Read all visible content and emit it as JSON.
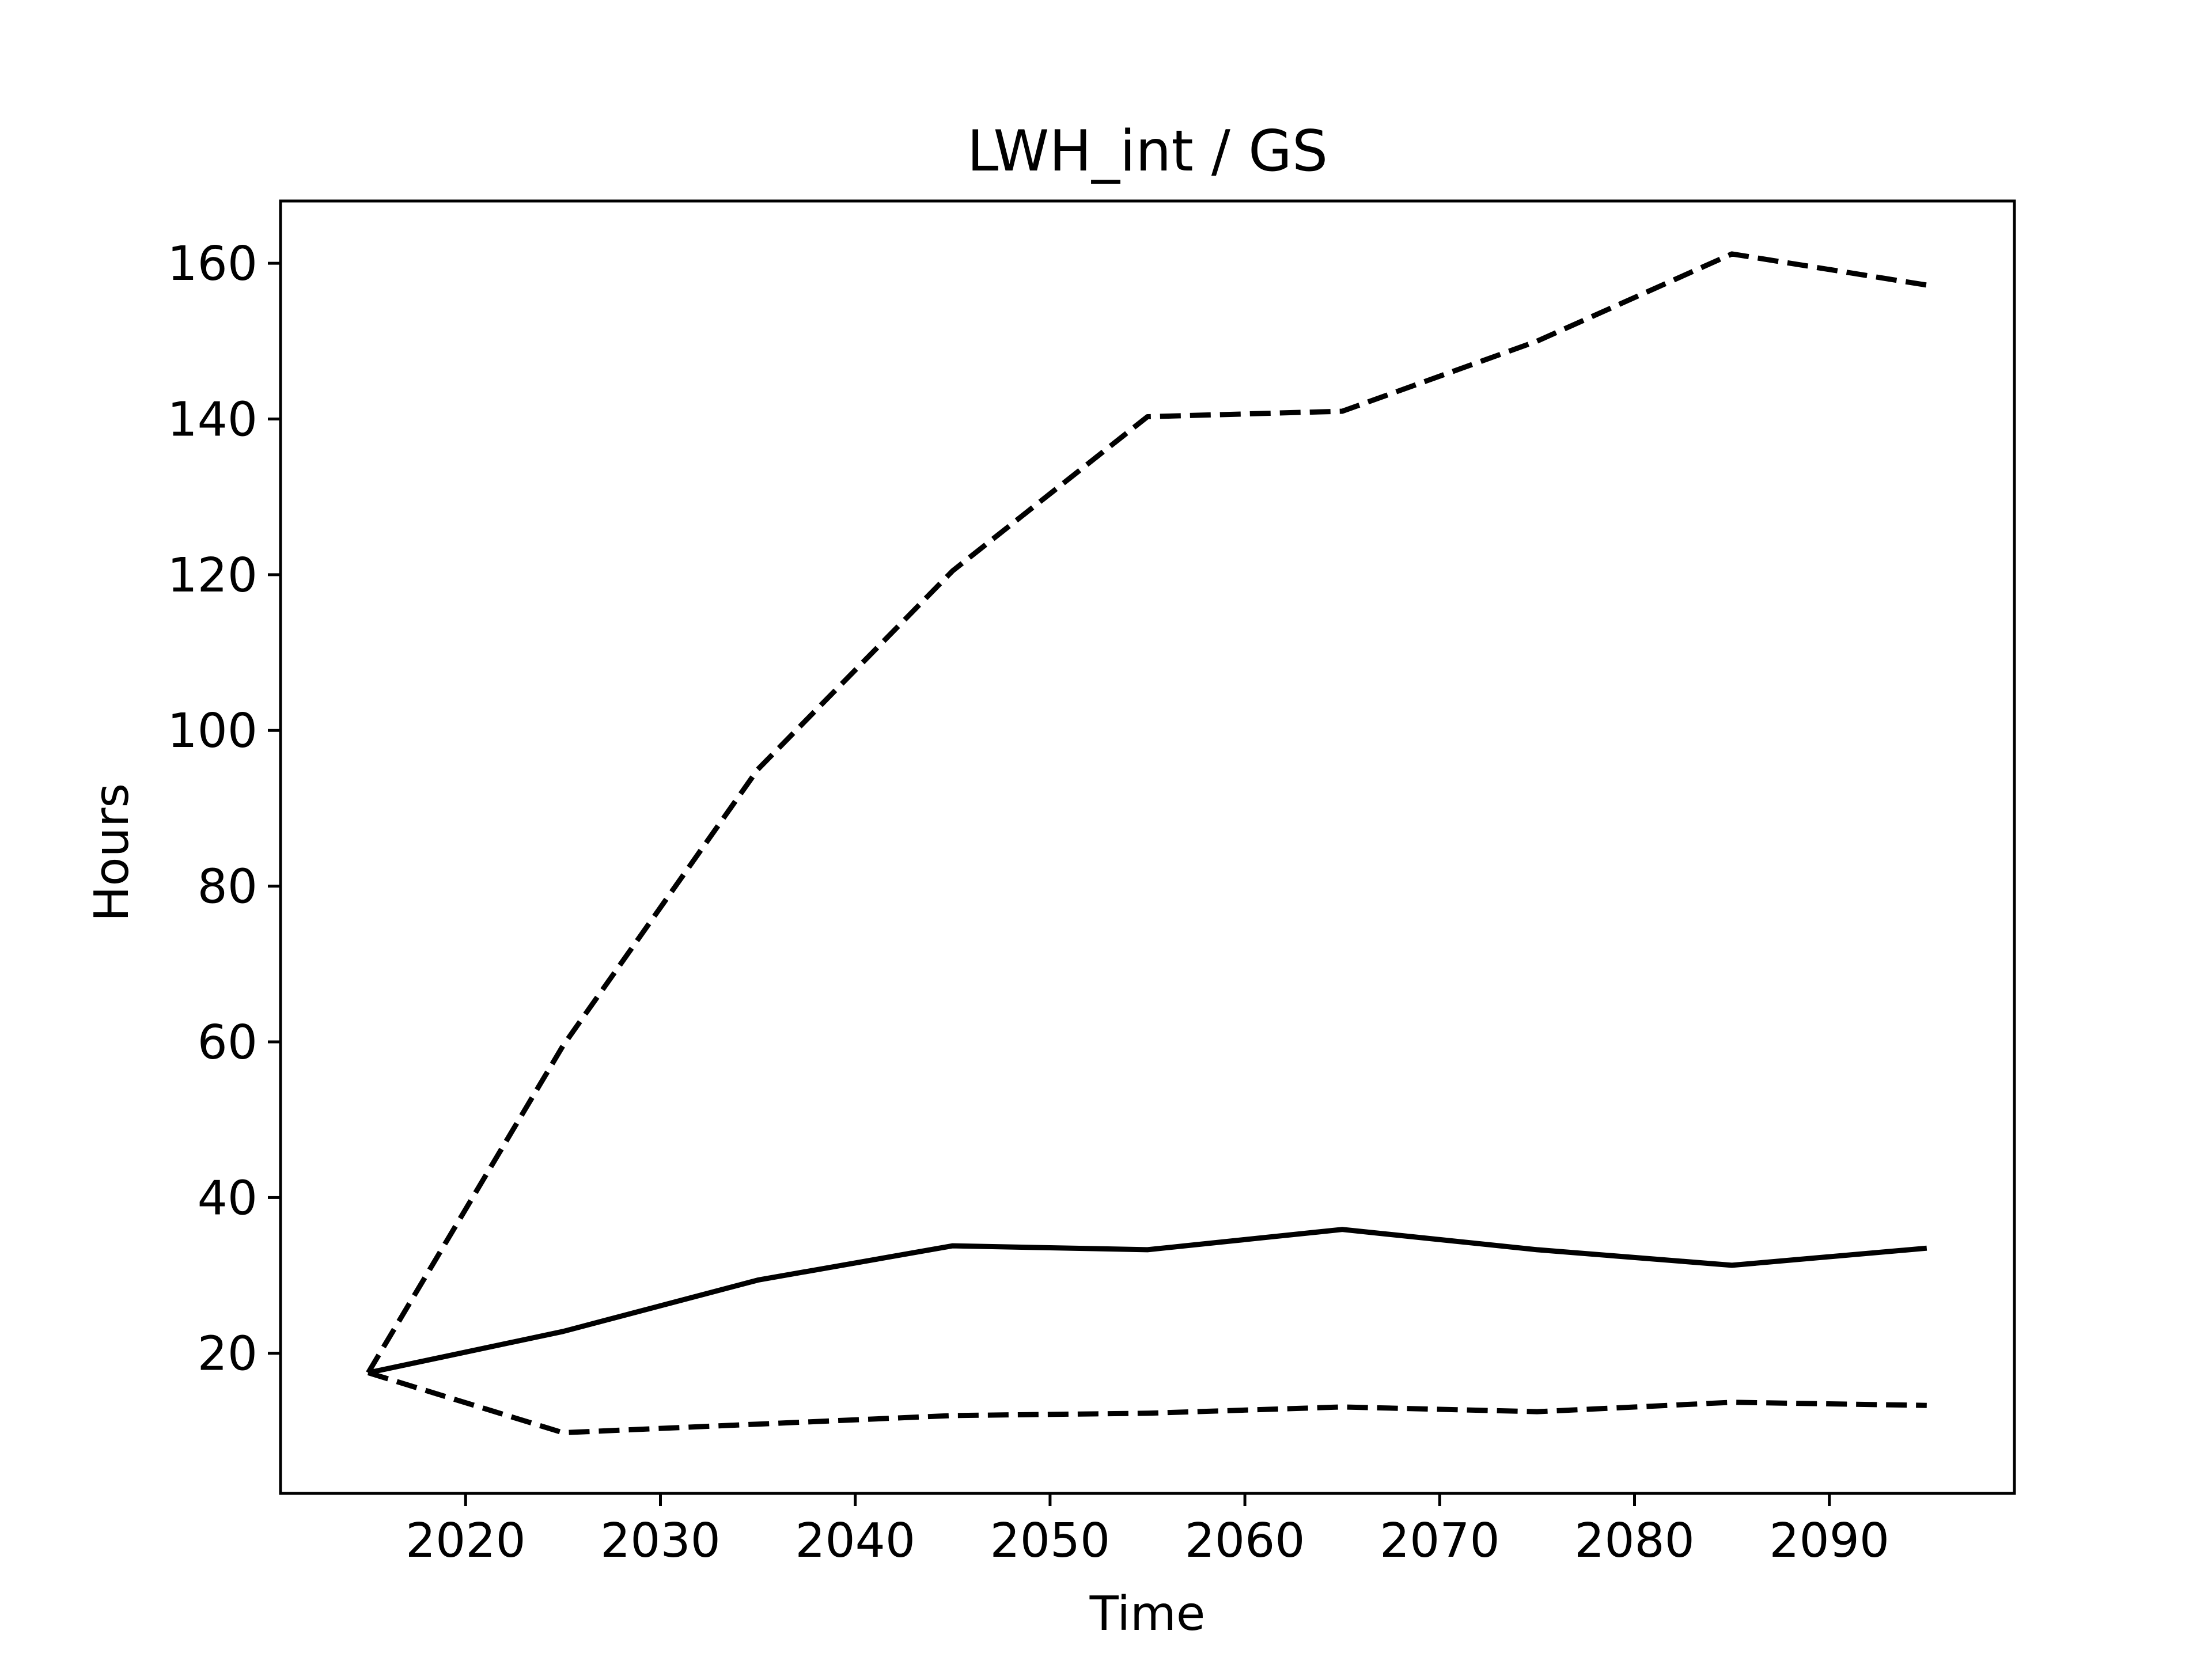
{
  "chart_data": {
    "type": "line",
    "title": "LWH_int / GS",
    "xlabel": "Time",
    "ylabel": "Hours",
    "xlim": [
      2010.5,
      2099.5
    ],
    "ylim": [
      2,
      168
    ],
    "xticks": [
      2020,
      2030,
      2040,
      2050,
      2060,
      2070,
      2080,
      2090
    ],
    "yticks": [
      20,
      40,
      60,
      80,
      100,
      120,
      140,
      160
    ],
    "grid": false,
    "legend": "none",
    "x": [
      2015,
      2025,
      2035,
      2045,
      2055,
      2065,
      2075,
      2085,
      2095
    ],
    "series": [
      {
        "style": "solid",
        "color": "#000000",
        "values": [
          17.5,
          22.8,
          29.4,
          33.8,
          33.3,
          35.9,
          33.3,
          31.3,
          33.5
        ]
      },
      {
        "style": "dashed",
        "color": "#000000",
        "values": [
          17.5,
          59.5,
          95,
          120.5,
          140.3,
          141,
          150,
          161.2,
          157.2
        ]
      },
      {
        "style": "dashed",
        "color": "#000000",
        "values": [
          17.5,
          9.8,
          10.9,
          12.0,
          12.3,
          13.1,
          12.5,
          13.7,
          13.3
        ]
      }
    ]
  }
}
